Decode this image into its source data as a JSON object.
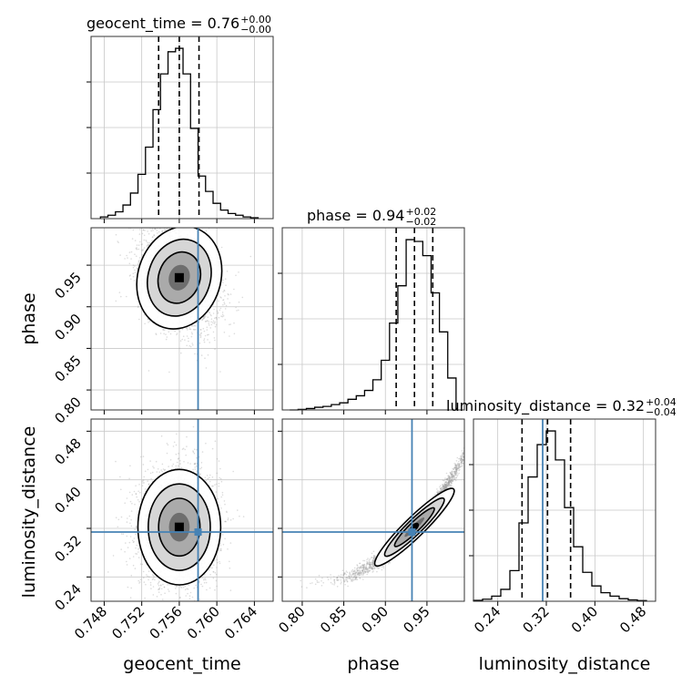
{
  "colors": {
    "truth": "#4682b4",
    "hist": "#000000",
    "grid": "#c8c8c8",
    "sample": "#9a9a9a"
  },
  "params": [
    {
      "key": "geocent_time",
      "label": "geocent_time",
      "median": 0.756,
      "lo": 0.7538,
      "hi": 0.7581,
      "truth": 0.758,
      "range": [
        0.7466,
        0.766
      ],
      "ticks": [
        0.748,
        0.752,
        0.756,
        0.76,
        0.764
      ],
      "tick_labels": [
        "0.748",
        "0.752",
        "0.756",
        "0.760",
        "0.764"
      ]
    },
    {
      "key": "phase",
      "label": "phase",
      "median": 0.935,
      "lo": 0.913,
      "hi": 0.957,
      "truth": 0.932,
      "range": [
        0.776,
        0.995
      ],
      "ticks": [
        0.8,
        0.85,
        0.9,
        0.95
      ],
      "tick_labels": [
        "0.80",
        "0.85",
        "0.90",
        "0.95"
      ]
    },
    {
      "key": "luminosity_distance",
      "label": "luminosity_distance",
      "median": 0.322,
      "lo": 0.28,
      "hi": 0.36,
      "truth": 0.314,
      "range": [
        0.2,
        0.5
      ],
      "ticks": [
        0.24,
        0.32,
        0.4,
        0.48
      ],
      "tick_labels": [
        "0.24",
        "0.32",
        "0.40",
        "0.48"
      ]
    }
  ],
  "titles": [
    {
      "main": "geocent_time = 0.76",
      "sup": "+0.00",
      "sub": "−0.00"
    },
    {
      "main": "phase = 0.94",
      "sup": "+0.02",
      "sub": "−0.02"
    },
    {
      "main": "luminosity_distance = 0.32",
      "sup": "+0.04",
      "sub": "−0.04"
    }
  ],
  "chart_data": {
    "type": "corner",
    "parameters": [
      "geocent_time",
      "phase",
      "luminosity_distance"
    ],
    "histograms": [
      {
        "parameter": "geocent_time",
        "bin_edges": [
          0.7476,
          0.7484,
          0.7492,
          0.75,
          0.7508,
          0.7516,
          0.7524,
          0.7532,
          0.754,
          0.7548,
          0.7556,
          0.7564,
          0.7572,
          0.758,
          0.7588,
          0.7596,
          0.7604,
          0.7612,
          0.762,
          0.7628,
          0.7636,
          0.7644
        ],
        "counts": [
          0.01,
          0.02,
          0.04,
          0.08,
          0.15,
          0.26,
          0.42,
          0.64,
          0.85,
          0.98,
          1.0,
          0.85,
          0.53,
          0.25,
          0.16,
          0.09,
          0.05,
          0.03,
          0.02,
          0.01,
          0.005
        ]
      },
      {
        "parameter": "phase",
        "bin_edges": [
          0.785,
          0.795,
          0.805,
          0.815,
          0.825,
          0.835,
          0.845,
          0.855,
          0.865,
          0.875,
          0.885,
          0.895,
          0.905,
          0.915,
          0.925,
          0.935,
          0.945,
          0.955,
          0.965,
          0.975,
          0.985
        ],
        "counts": [
          0.0,
          0.003,
          0.008,
          0.015,
          0.02,
          0.03,
          0.04,
          0.06,
          0.08,
          0.11,
          0.17,
          0.28,
          0.49,
          0.7,
          0.96,
          0.95,
          0.87,
          0.66,
          0.44,
          0.18
        ]
      },
      {
        "parameter": "luminosity_distance",
        "bin_edges": [
          0.2,
          0.215,
          0.23,
          0.245,
          0.26,
          0.275,
          0.29,
          0.305,
          0.32,
          0.335,
          0.35,
          0.365,
          0.38,
          0.395,
          0.41,
          0.425,
          0.44,
          0.455,
          0.47,
          0.485
        ],
        "counts": [
          0.005,
          0.012,
          0.03,
          0.07,
          0.18,
          0.46,
          0.73,
          0.92,
          1.0,
          0.83,
          0.55,
          0.32,
          0.17,
          0.09,
          0.05,
          0.03,
          0.015,
          0.008,
          0.004
        ]
      }
    ],
    "quantiles": [
      {
        "parameter": "geocent_time",
        "values": [
          0.7538,
          0.756,
          0.7581
        ]
      },
      {
        "parameter": "phase",
        "values": [
          0.913,
          0.935,
          0.957
        ]
      },
      {
        "parameter": "luminosity_distance",
        "values": [
          0.28,
          0.322,
          0.36
        ]
      }
    ],
    "truths": {
      "geocent_time": 0.758,
      "phase": 0.932,
      "luminosity_distance": 0.314
    },
    "pairs": [
      {
        "x": "geocent_time",
        "y": "phase",
        "cx": 0.756,
        "cy": 0.935,
        "sx": 0.0021,
        "sy": 0.033,
        "rho": -0.35
      },
      {
        "x": "geocent_time",
        "y": "luminosity_distance",
        "cx": 0.756,
        "cy": 0.322,
        "sx": 0.0021,
        "sy": 0.05,
        "rho": 0.0
      },
      {
        "x": "phase",
        "y": "luminosity_distance",
        "cx": 0.935,
        "cy": 0.322,
        "sx": 0.03,
        "sy": 0.045,
        "rho": 0.98
      }
    ],
    "grid": true
  }
}
